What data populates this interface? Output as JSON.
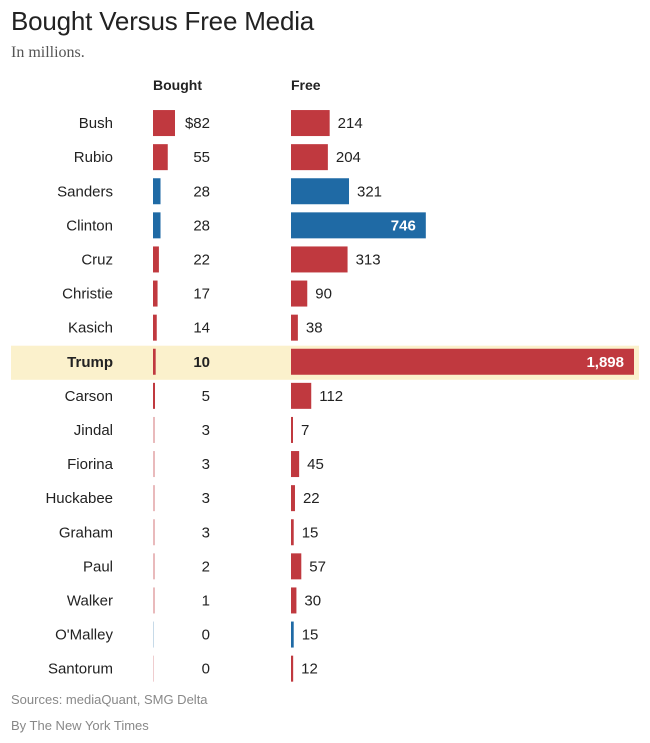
{
  "title": "Bought Versus Free Media",
  "subtitle": "In millions.",
  "columns": {
    "bought": "Bought",
    "free": "Free"
  },
  "colors": {
    "republican": "#c0393f",
    "democrat": "#1f6aa5",
    "highlight": "#fbf1cc"
  },
  "chart_data": {
    "type": "bar",
    "title": "Bought Versus Free Media",
    "subtitle": "In millions.",
    "unit_prefix": "$",
    "categories": [
      "Bush",
      "Rubio",
      "Sanders",
      "Clinton",
      "Cruz",
      "Christie",
      "Kasich",
      "Trump",
      "Carson",
      "Jindal",
      "Fiorina",
      "Huckabee",
      "Graham",
      "Paul",
      "Walker",
      "O'Malley",
      "Santorum"
    ],
    "party": [
      "R",
      "R",
      "D",
      "D",
      "R",
      "R",
      "R",
      "R",
      "R",
      "R",
      "R",
      "R",
      "R",
      "R",
      "R",
      "D",
      "R"
    ],
    "highlight": "Trump",
    "series": [
      {
        "name": "Bought",
        "values": [
          82,
          55,
          28,
          28,
          22,
          17,
          14,
          10,
          5,
          3,
          3,
          3,
          3,
          2,
          1,
          0,
          0
        ],
        "labels": [
          "$82",
          "55",
          "28",
          "28",
          "22",
          "17",
          "14",
          "10",
          "5",
          "3",
          "3",
          "3",
          "3",
          "2",
          "1",
          "0",
          "0"
        ]
      },
      {
        "name": "Free",
        "values": [
          214,
          204,
          321,
          746,
          313,
          90,
          38,
          1898,
          112,
          7,
          45,
          22,
          15,
          57,
          30,
          15,
          12
        ],
        "labels": [
          "214",
          "204",
          "321",
          "746",
          "313",
          "90",
          "38",
          "1,898",
          "112",
          "7",
          "45",
          "22",
          "15",
          "57",
          "30",
          "15",
          "12"
        ]
      }
    ]
  },
  "footer": {
    "sources": "Sources: mediaQuant, SMG Delta",
    "byline": "By The New York Times"
  }
}
